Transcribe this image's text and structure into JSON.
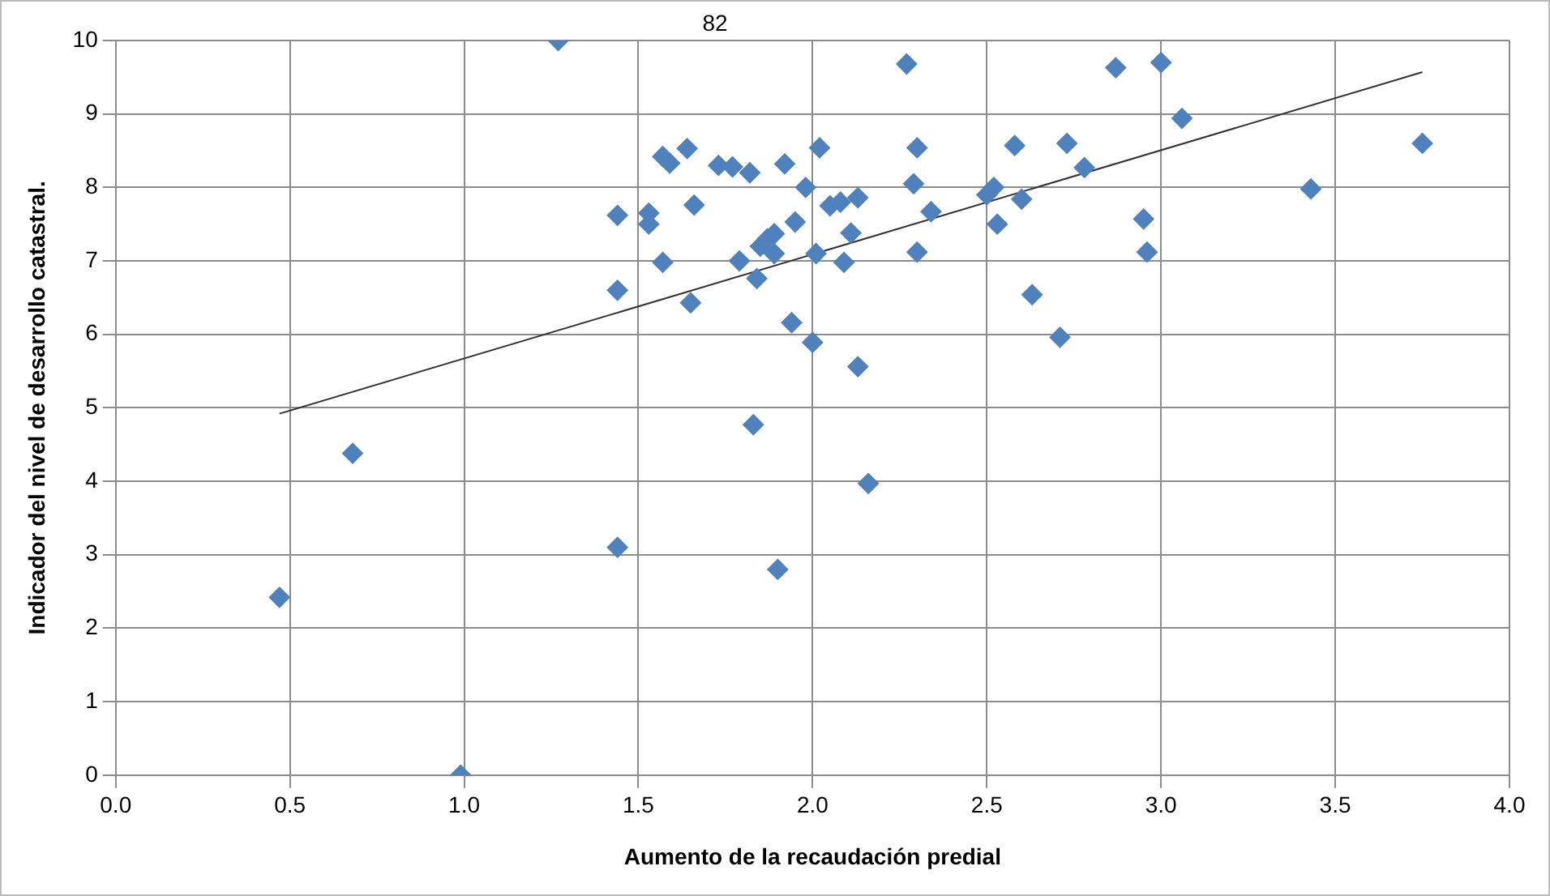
{
  "chart_data": {
    "type": "scatter",
    "xlabel": "Aumento de la recaudación predial",
    "ylabel": "Indicador del nivel de desarrollo catastral.",
    "annotations": [
      "82"
    ],
    "xlim": [
      0,
      4
    ],
    "xticks": [
      {
        "value": 0,
        "label": "0.0"
      },
      {
        "value": 0.5,
        "label": "0.5"
      },
      {
        "value": 1,
        "label": "1.0"
      },
      {
        "value": 1.5,
        "label": "1.5"
      },
      {
        "value": 2,
        "label": "2.0"
      },
      {
        "value": 2.5,
        "label": "2.5"
      },
      {
        "value": 3,
        "label": "3.0"
      },
      {
        "value": 3.5,
        "label": "3.5"
      },
      {
        "value": 4,
        "label": "4.0"
      }
    ],
    "ylim": [
      0,
      10
    ],
    "yticks": [
      0,
      1,
      2,
      3,
      4,
      5,
      6,
      7,
      8,
      9,
      10
    ],
    "grid": true,
    "legend": false,
    "marker": "diamond",
    "series": [
      {
        "color": "#4f81bd",
        "x": [
          1.27,
          0.47,
          0.68,
          0.99,
          1.44,
          1.44,
          1.44,
          1.53,
          1.53,
          1.57,
          1.57,
          1.59,
          1.64,
          1.65,
          1.66,
          1.73,
          1.77,
          1.82,
          1.79,
          1.83,
          1.84,
          1.85,
          1.87,
          1.89,
          1.89,
          1.9,
          1.92,
          1.94,
          1.95,
          1.98,
          2.0,
          2.01,
          2.02,
          2.05,
          2.08,
          2.09,
          2.11,
          2.13,
          2.13,
          2.16,
          2.27,
          2.29,
          2.3,
          2.3,
          2.34,
          2.5,
          2.52,
          2.53,
          2.58,
          2.6,
          2.63,
          2.71,
          2.73,
          2.78,
          2.87,
          2.95,
          2.96,
          3.0,
          3.06,
          3.43,
          3.75
        ],
        "values": [
          10.0,
          2.42,
          4.38,
          0.0,
          3.1,
          6.6,
          7.62,
          7.65,
          7.5,
          6.98,
          8.42,
          8.33,
          8.53,
          6.43,
          7.76,
          8.3,
          8.28,
          8.2,
          7.0,
          4.77,
          6.76,
          7.2,
          7.3,
          7.37,
          7.1,
          2.8,
          8.32,
          6.16,
          7.53,
          8.0,
          5.89,
          7.1,
          8.54,
          7.75,
          7.8,
          6.98,
          7.38,
          7.86,
          5.56,
          3.97,
          9.68,
          8.05,
          8.54,
          7.12,
          7.67,
          7.9,
          8.0,
          7.5,
          8.57,
          7.84,
          6.54,
          5.96,
          8.6,
          8.27,
          9.63,
          7.57,
          7.12,
          9.7,
          8.94,
          7.98,
          8.6
        ]
      },
      {
        "type": "line",
        "marker": "none",
        "color": "#333333",
        "x": [
          0.47,
          3.75
        ],
        "values": [
          4.92,
          9.57
        ]
      }
    ]
  }
}
